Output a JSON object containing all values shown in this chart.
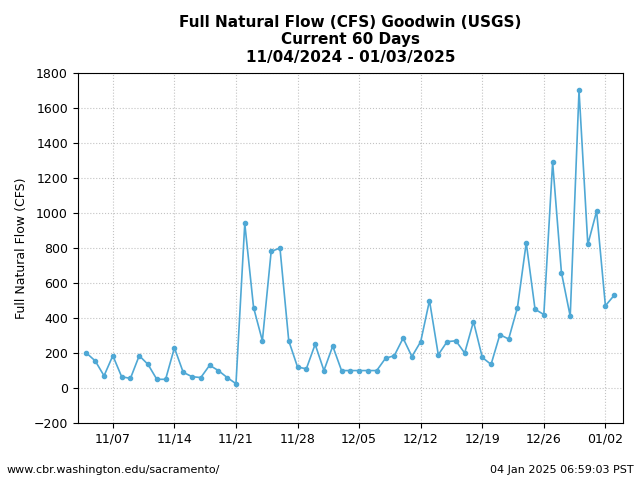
{
  "title_line1": "Full Natural Flow (CFS) Goodwin (USGS)",
  "title_line2": "Current 60 Days",
  "title_line3": "11/04/2024 - 01/03/2025",
  "ylabel": "Full Natural Flow (CFS)",
  "footer_left": "www.cbr.washington.edu/sacramento/",
  "footer_right": "04 Jan 2025 06:59:03 PST",
  "ylim": [
    -200,
    1800
  ],
  "yticks": [
    -200,
    0,
    200,
    400,
    600,
    800,
    1000,
    1200,
    1400,
    1600,
    1800
  ],
  "line_color": "#4fa8d5",
  "marker": "o",
  "marker_size": 3,
  "line_width": 1.2,
  "dates": [
    "2024-11-04",
    "2024-11-05",
    "2024-11-06",
    "2024-11-07",
    "2024-11-08",
    "2024-11-09",
    "2024-11-10",
    "2024-11-11",
    "2024-11-12",
    "2024-11-13",
    "2024-11-14",
    "2024-11-15",
    "2024-11-16",
    "2024-11-17",
    "2024-11-18",
    "2024-11-19",
    "2024-11-20",
    "2024-11-21",
    "2024-11-22",
    "2024-11-23",
    "2024-11-24",
    "2024-11-25",
    "2024-11-26",
    "2024-11-27",
    "2024-11-28",
    "2024-11-29",
    "2024-11-30",
    "2024-12-01",
    "2024-12-02",
    "2024-12-03",
    "2024-12-04",
    "2024-12-05",
    "2024-12-06",
    "2024-12-07",
    "2024-12-08",
    "2024-12-09",
    "2024-12-10",
    "2024-12-11",
    "2024-12-12",
    "2024-12-13",
    "2024-12-14",
    "2024-12-15",
    "2024-12-16",
    "2024-12-17",
    "2024-12-18",
    "2024-12-19",
    "2024-12-20",
    "2024-12-21",
    "2024-12-22",
    "2024-12-23",
    "2024-12-24",
    "2024-12-25",
    "2024-12-26",
    "2024-12-27",
    "2024-12-28",
    "2024-12-29",
    "2024-12-30",
    "2024-12-31",
    "2025-01-01",
    "2025-01-02",
    "2025-01-03"
  ],
  "values": [
    200,
    155,
    70,
    185,
    65,
    55,
    185,
    135,
    50,
    50,
    230,
    90,
    65,
    60,
    130,
    100,
    60,
    25,
    940,
    460,
    270,
    780,
    800,
    270,
    120,
    110,
    250,
    100,
    240,
    100,
    100,
    100,
    100,
    100,
    170,
    185,
    285,
    180,
    265,
    500,
    190,
    265,
    270,
    200,
    380,
    175,
    135,
    305,
    280,
    460,
    830,
    450,
    420,
    1290,
    660,
    410,
    1700,
    820,
    1010,
    470,
    530
  ],
  "xtick_positions": [
    "2024-11-07",
    "2024-11-14",
    "2024-11-21",
    "2024-11-28",
    "2024-12-05",
    "2024-12-12",
    "2024-12-19",
    "2024-12-26",
    "2025-01-02"
  ],
  "xtick_labels": [
    "11/07",
    "11/14",
    "11/21",
    "11/28",
    "12/05",
    "12/12",
    "12/19",
    "12/26",
    "01/02"
  ],
  "background_color": "#ffffff",
  "grid_color": "#aaaaaa",
  "grid_style": ":",
  "grid_alpha": 0.7,
  "title_fontsize": 11,
  "axis_label_fontsize": 9,
  "tick_fontsize": 9,
  "footer_fontsize": 8
}
